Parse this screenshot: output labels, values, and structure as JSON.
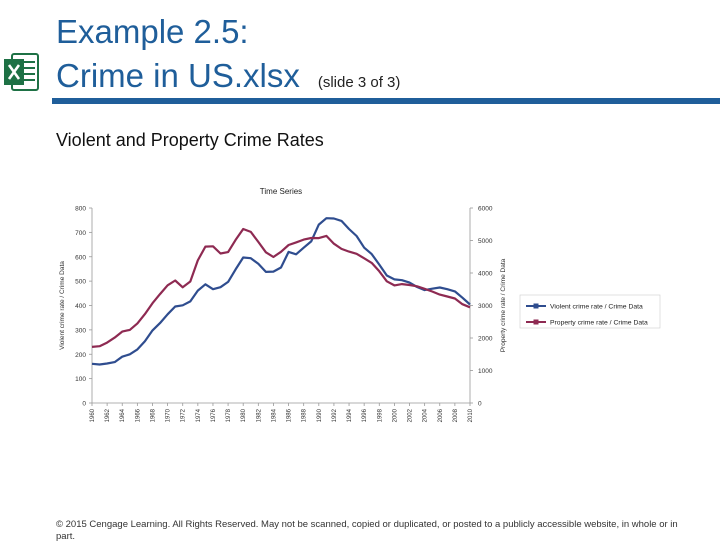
{
  "slide": {
    "title_line1": "Example 2.5:",
    "title_line2": "Crime in US.xlsx",
    "slide_note": "(slide 3 of 3)",
    "subtitle": "Violent and Property Crime Rates",
    "footer": "© 2015 Cengage Learning. All Rights Reserved. May not be scanned, copied or duplicated, or posted to a publicly accessible website, in whole or in part.",
    "accent_color": "#1f5e9a",
    "icon": "excel-icon"
  },
  "chart_data": {
    "type": "line",
    "title": "Time Series",
    "xlabel": "",
    "ylabel": "Violent crime rate / Crime Data",
    "y2label": "Property crime rate / Crime Data",
    "ylim": [
      0,
      800
    ],
    "y2lim": [
      0,
      6000
    ],
    "yticks": [
      "0",
      "100",
      "200",
      "300",
      "400",
      "500",
      "600",
      "700",
      "800"
    ],
    "y2ticks": [
      "0",
      "1000",
      "2000",
      "3000",
      "4000",
      "5000",
      "6000"
    ],
    "x_tick_labels": [
      "1960",
      "1962",
      "1964",
      "1966",
      "1968",
      "1970",
      "1972",
      "1974",
      "1976",
      "1978",
      "1980",
      "1982",
      "1984",
      "1986",
      "1988",
      "1990",
      "1992",
      "1994",
      "1996",
      "1998",
      "2000",
      "2002",
      "2004",
      "2006",
      "2008",
      "2010"
    ],
    "x": [
      1960,
      1961,
      1962,
      1963,
      1964,
      1965,
      1966,
      1967,
      1968,
      1969,
      1970,
      1971,
      1972,
      1973,
      1974,
      1975,
      1976,
      1977,
      1978,
      1979,
      1980,
      1981,
      1982,
      1983,
      1984,
      1985,
      1986,
      1987,
      1988,
      1989,
      1990,
      1991,
      1992,
      1993,
      1994,
      1995,
      1996,
      1997,
      1998,
      1999,
      2000,
      2001,
      2002,
      2003,
      2004,
      2005,
      2006,
      2007,
      2008,
      2009,
      2010
    ],
    "series": [
      {
        "name": "Violent crime rate / Crime Data",
        "color": "#2f4d8f",
        "axis": "left",
        "values": [
          161,
          158,
          162,
          168,
          190,
          200,
          220,
          253,
          298,
          328,
          364,
          396,
          401,
          417,
          461,
          487,
          467,
          475,
          497,
          548,
          597,
          594,
          571,
          538,
          539,
          556,
          620,
          610,
          637,
          663,
          732,
          758,
          757,
          747,
          714,
          685,
          637,
          611,
          568,
          523,
          507,
          504,
          494,
          476,
          463,
          469,
          474,
          467,
          458,
          432,
          404
        ]
      },
      {
        "name": "Property crime rate / Crime Data",
        "color": "#8e2a52",
        "axis": "right",
        "values": [
          1726,
          1747,
          1857,
          2012,
          2197,
          2249,
          2450,
          2736,
          3071,
          3351,
          3622,
          3768,
          3561,
          3737,
          4389,
          4811,
          4820,
          4601,
          4642,
          5017,
          5353,
          5264,
          4956,
          4637,
          4492,
          4651,
          4863,
          4940,
          5027,
          5078,
          5073,
          5140,
          4903,
          4740,
          4660,
          4591,
          4451,
          4312,
          4052,
          3744,
          3618,
          3658,
          3631,
          3591,
          3514,
          3432,
          3335,
          3276,
          3214,
          3041,
          2946
        ]
      }
    ]
  }
}
